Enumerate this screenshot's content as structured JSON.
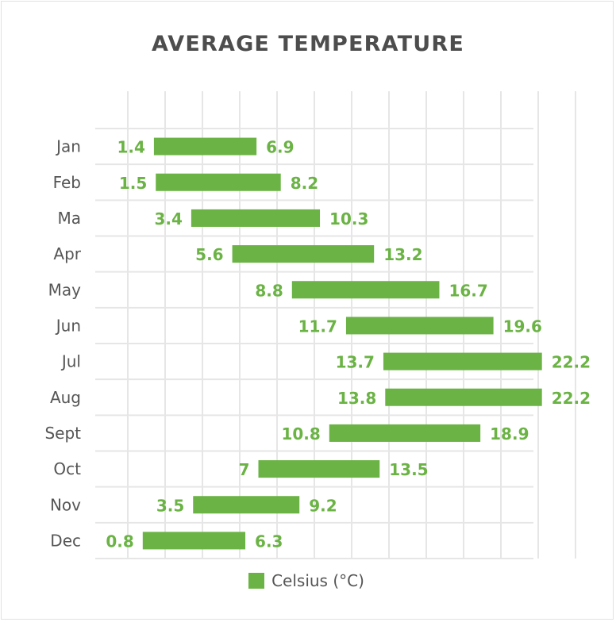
{
  "chart_data": {
    "type": "bar",
    "orientation": "horizontal",
    "stacked_range": true,
    "title": "AVERAGE TEMPERATURE",
    "categories": [
      "Jan",
      "Feb",
      "Ma",
      "Apr",
      "May",
      "Jun",
      "Jul",
      "Aug",
      "Sept",
      "Oct",
      "Nov",
      "Dec"
    ],
    "series": [
      {
        "name": "Celsius (°C)",
        "color": "#6ab344",
        "low": [
          1.4,
          1.5,
          3.4,
          5.6,
          8.8,
          11.7,
          13.7,
          13.8,
          10.8,
          7,
          3.5,
          0.8
        ],
        "high": [
          6.9,
          8.2,
          10.3,
          13.2,
          16.7,
          19.6,
          22.2,
          22.2,
          18.9,
          13.5,
          9.2,
          6.3
        ]
      }
    ],
    "xlim": [
      -2,
      24
    ],
    "x_gridline_step": 2,
    "x_tick_labels_shown": false,
    "grid": true,
    "legend_position": "bottom",
    "label_color": "#6ab344",
    "text_color": "#555555",
    "grid_color": "#e6e6e6"
  }
}
